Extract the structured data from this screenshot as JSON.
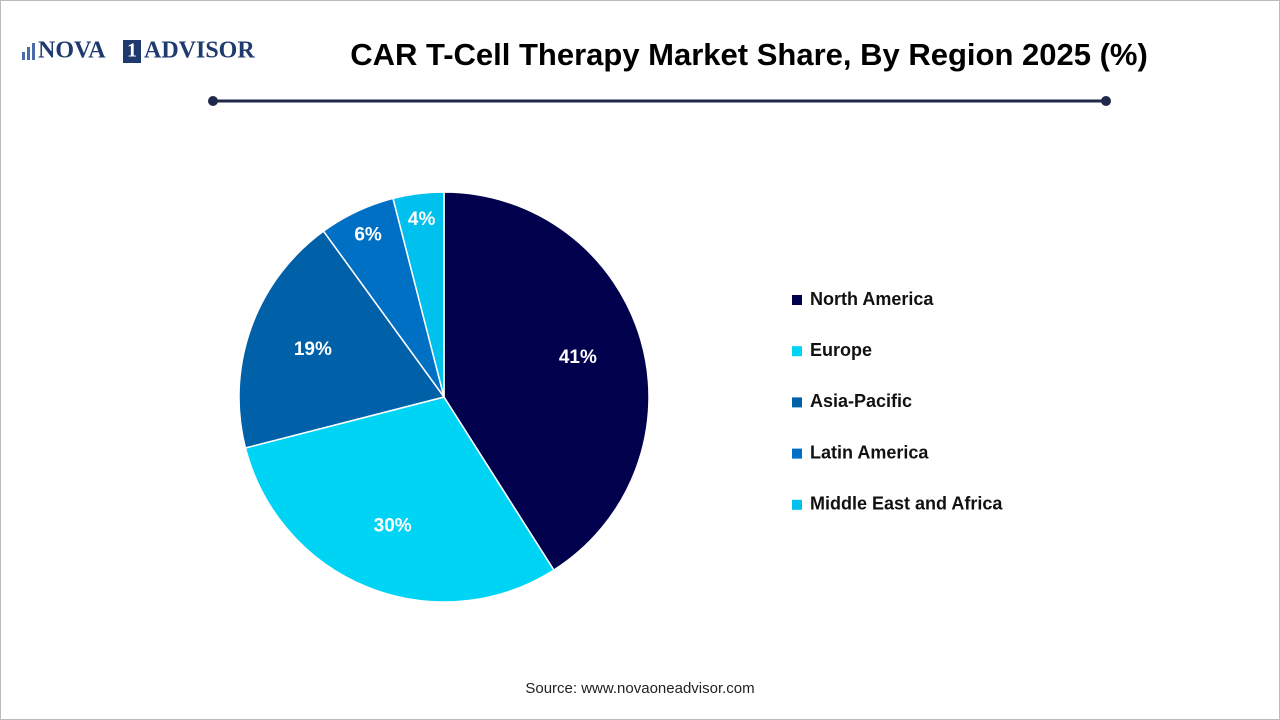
{
  "logo": {
    "left": "NOVA",
    "mark": "1",
    "right": "ADVISOR"
  },
  "chart_data": {
    "type": "pie",
    "title": "CAR T-Cell Therapy Market Share, By Region 2025 (%)",
    "categories": [
      "North America",
      "Europe",
      "Asia-Pacific",
      "Latin America",
      "Middle East and Africa"
    ],
    "values": [
      41,
      30,
      19,
      6,
      4
    ],
    "value_labels": [
      "41%",
      "30%",
      "19%",
      "6%",
      "4%"
    ],
    "colors": [
      "#00004d",
      "#00d4f5",
      "#0060a8",
      "#0070c4",
      "#00c0ee"
    ],
    "legend": "right"
  },
  "source": "Source: www.novaoneadvisor.com"
}
